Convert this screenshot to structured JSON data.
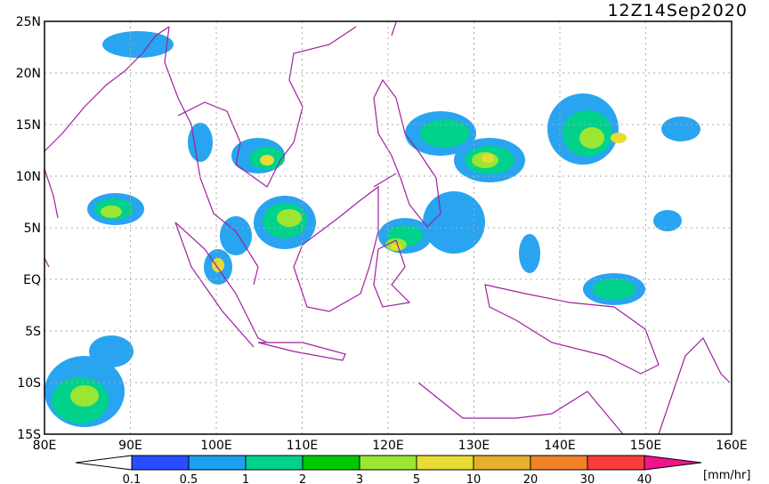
{
  "header": {
    "title": "12Z14Sep2020"
  },
  "lat_labels": [
    "25N",
    "20N",
    "15N",
    "10N",
    "5N",
    "EQ",
    "5S",
    "10S",
    "15S"
  ],
  "lon_labels": [
    "80E",
    "90E",
    "100E",
    "110E",
    "120E",
    "130E",
    "140E",
    "150E",
    "160E"
  ],
  "colorbar": {
    "labels": [
      "0.1",
      "0.5",
      "1",
      "2",
      "3",
      "5",
      "10",
      "20",
      "30",
      "40"
    ],
    "colors": [
      "#2a4cff",
      "#1ea0f0",
      "#00d28c",
      "#00c800",
      "#9be632",
      "#e6dc32",
      "#e6af2d",
      "#f08228",
      "#fa3c3c",
      "#f0148c"
    ],
    "unit": "[mm/hr]"
  }
}
